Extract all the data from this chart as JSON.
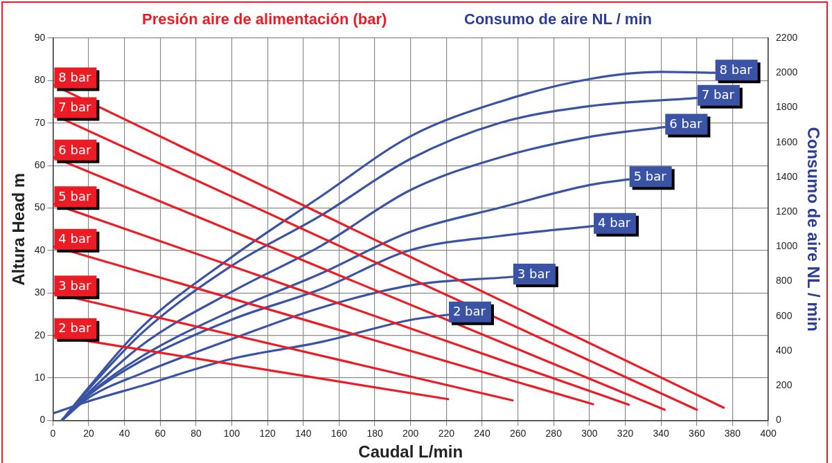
{
  "chart_data": {
    "type": "line",
    "title": "Presión aire de alimentación (bar)",
    "subtitle": "Consumo de aire NL / min",
    "xlabel": "Caudal L/min",
    "ylabel": "Altura Head m",
    "y2label": "Consumo de aire NL / min",
    "xlim": [
      0,
      400
    ],
    "xticks": [
      0,
      20,
      40,
      60,
      80,
      100,
      120,
      140,
      160,
      180,
      200,
      220,
      240,
      260,
      280,
      300,
      320,
      340,
      360,
      380,
      400
    ],
    "ylim": [
      0,
      90
    ],
    "yticks": [
      0,
      10,
      20,
      30,
      40,
      50,
      60,
      70,
      80,
      90
    ],
    "y2lim": [
      0,
      2200
    ],
    "y2ticks": [
      0,
      200,
      400,
      600,
      800,
      1000,
      1200,
      1400,
      1600,
      1800,
      2000,
      2200
    ],
    "grid": true,
    "series": [
      {
        "name": "8 bar",
        "color": "#ed1c24",
        "x": [
          0,
          375
        ],
        "values": [
          79,
          3
        ]
      },
      {
        "name": "7 bar",
        "color": "#ed1c24",
        "x": [
          0,
          360
        ],
        "values": [
          72,
          2.5
        ]
      },
      {
        "name": "6 bar",
        "color": "#ed1c24",
        "x": [
          0,
          342
        ],
        "values": [
          62,
          2.5
        ]
      },
      {
        "name": "5 bar",
        "color": "#ed1c24",
        "x": [
          0,
          322
        ],
        "values": [
          51,
          3.7
        ]
      },
      {
        "name": "4 bar",
        "color": "#ed1c24",
        "x": [
          0,
          302
        ],
        "values": [
          41,
          3.8
        ]
      },
      {
        "name": "3 bar",
        "color": "#ed1c24",
        "x": [
          0,
          257
        ],
        "values": [
          30,
          4.7
        ]
      },
      {
        "name": "2 bar",
        "color": "#ed1c24",
        "x": [
          0,
          221
        ],
        "values": [
          20,
          5
        ]
      },
      {
        "name": "8 bar",
        "color": "#3a53a4",
        "axis": "y2",
        "x": [
          5,
          20,
          50,
          100,
          150,
          200,
          250,
          300,
          340,
          370
        ],
        "values": [
          0,
          190,
          540,
          940,
          1290,
          1635,
          1834,
          1964,
          2005,
          2000
        ]
      },
      {
        "name": "7 bar",
        "color": "#3a53a4",
        "axis": "y2",
        "x": [
          5,
          20,
          50,
          100,
          150,
          200,
          250,
          300,
          360
        ],
        "values": [
          0,
          180,
          505,
          890,
          1180,
          1505,
          1712,
          1808,
          1855
        ]
      },
      {
        "name": "6 bar",
        "color": "#3a53a4",
        "axis": "y2",
        "x": [
          5,
          20,
          50,
          100,
          150,
          200,
          250,
          300,
          342
        ],
        "values": [
          0,
          160,
          435,
          740,
          1005,
          1326,
          1513,
          1631,
          1688
        ]
      },
      {
        "name": "5 bar",
        "color": "#3a53a4",
        "axis": "y2",
        "x": [
          5,
          20,
          50,
          100,
          150,
          200,
          250,
          300,
          322
        ],
        "values": [
          0,
          150,
          370,
          630,
          846,
          1086,
          1224,
          1354,
          1387
        ]
      },
      {
        "name": "4 bar",
        "color": "#3a53a4",
        "axis": "y2",
        "x": [
          5,
          20,
          50,
          100,
          150,
          200,
          250,
          302
        ],
        "values": [
          0,
          145,
          346,
          580,
          756,
          980,
          1061,
          1118
        ]
      },
      {
        "name": "3 bar",
        "color": "#3a53a4",
        "axis": "y2",
        "x": [
          5,
          20,
          50,
          100,
          150,
          200,
          257
        ],
        "values": [
          0,
          130,
          272,
          468,
          649,
          777,
          826
        ]
      },
      {
        "name": "2 bar",
        "color": "#3a53a4",
        "axis": "y2",
        "x": [
          0,
          20,
          50,
          100,
          150,
          200,
          221
        ],
        "values": [
          40,
          110,
          200,
          354,
          451,
          578,
          608
        ]
      }
    ]
  }
}
